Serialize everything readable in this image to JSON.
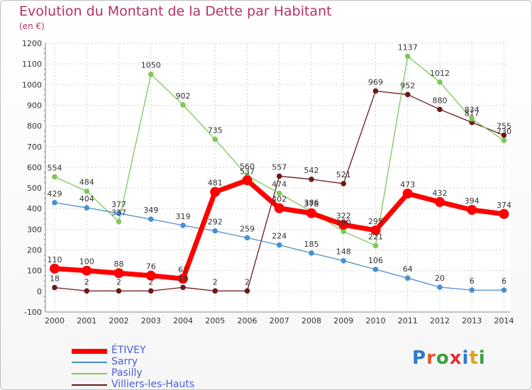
{
  "header": {
    "title": "Evolution du Montant de la Dette par Habitant",
    "unit": "(en €)"
  },
  "logo": {
    "letters": [
      "P",
      "r",
      "o",
      "x",
      "i",
      "t",
      "i"
    ],
    "colors": [
      "#2b7bc9",
      "#e05a2b",
      "#3aa040",
      "#e03030",
      "#2b7bc9",
      "#e0a020",
      "#3aa040"
    ]
  },
  "chart_data": {
    "type": "line",
    "title": "Evolution du Montant de la Dette par Habitant",
    "ylabel": "(en €)",
    "xlabel": "",
    "x": [
      "2000",
      "2001",
      "2002",
      "2003",
      "2004",
      "2005",
      "2006",
      "2007",
      "2008",
      "2009",
      "2010",
      "2011",
      "2012",
      "2013",
      "2014"
    ],
    "ylim": [
      -100,
      1200
    ],
    "yticks": [
      "-100",
      "0",
      "100",
      "200",
      "300",
      "400",
      "500",
      "600",
      "700",
      "800",
      "900",
      "1000",
      "1100",
      "1200"
    ],
    "grid": true,
    "legend_position": "bottom-left",
    "series": [
      {
        "name": "Villiers-les-Hauts",
        "color": "#6b1a1a",
        "values": [
          18,
          2,
          2,
          2,
          19,
          2,
          2,
          557,
          542,
          521,
          969,
          952,
          880,
          817,
          755
        ],
        "labels": [
          "18",
          "2",
          "2",
          "2",
          "19",
          "2",
          "2",
          "557",
          "542",
          "521",
          "969",
          "952",
          "880",
          "817",
          "755"
        ]
      },
      {
        "name": "Pasilly",
        "color": "#7ec85a",
        "values": [
          554,
          484,
          337,
          1050,
          902,
          735,
          560,
          474,
          386,
          290,
          221,
          1137,
          1012,
          834,
          730
        ],
        "labels": [
          "554",
          "484",
          "337",
          "1050",
          "902",
          "735",
          "560",
          "474",
          "386",
          "290",
          "221",
          "1137",
          "1012",
          "834",
          "730"
        ]
      },
      {
        "name": "Sarry",
        "color": "#4a8fd4",
        "values": [
          429,
          404,
          377,
          349,
          319,
          292,
          259,
          224,
          185,
          148,
          106,
          64,
          20,
          6,
          6
        ],
        "labels": [
          "429",
          "404",
          "377",
          "349",
          "319",
          "292",
          "259",
          "224",
          "185",
          "148",
          "106",
          "64",
          "20",
          "6",
          "6"
        ]
      },
      {
        "name": "ÉTIVEY",
        "color": "#ff0000",
        "values": [
          110,
          100,
          88,
          76,
          61,
          481,
          537,
          402,
          378,
          322,
          295,
          473,
          432,
          394,
          374
        ],
        "labels": [
          "110",
          "100",
          "88",
          "76",
          "61",
          "481",
          "537",
          "402",
          "378",
          "322",
          "295",
          "473",
          "432",
          "394",
          "374"
        ]
      }
    ]
  }
}
